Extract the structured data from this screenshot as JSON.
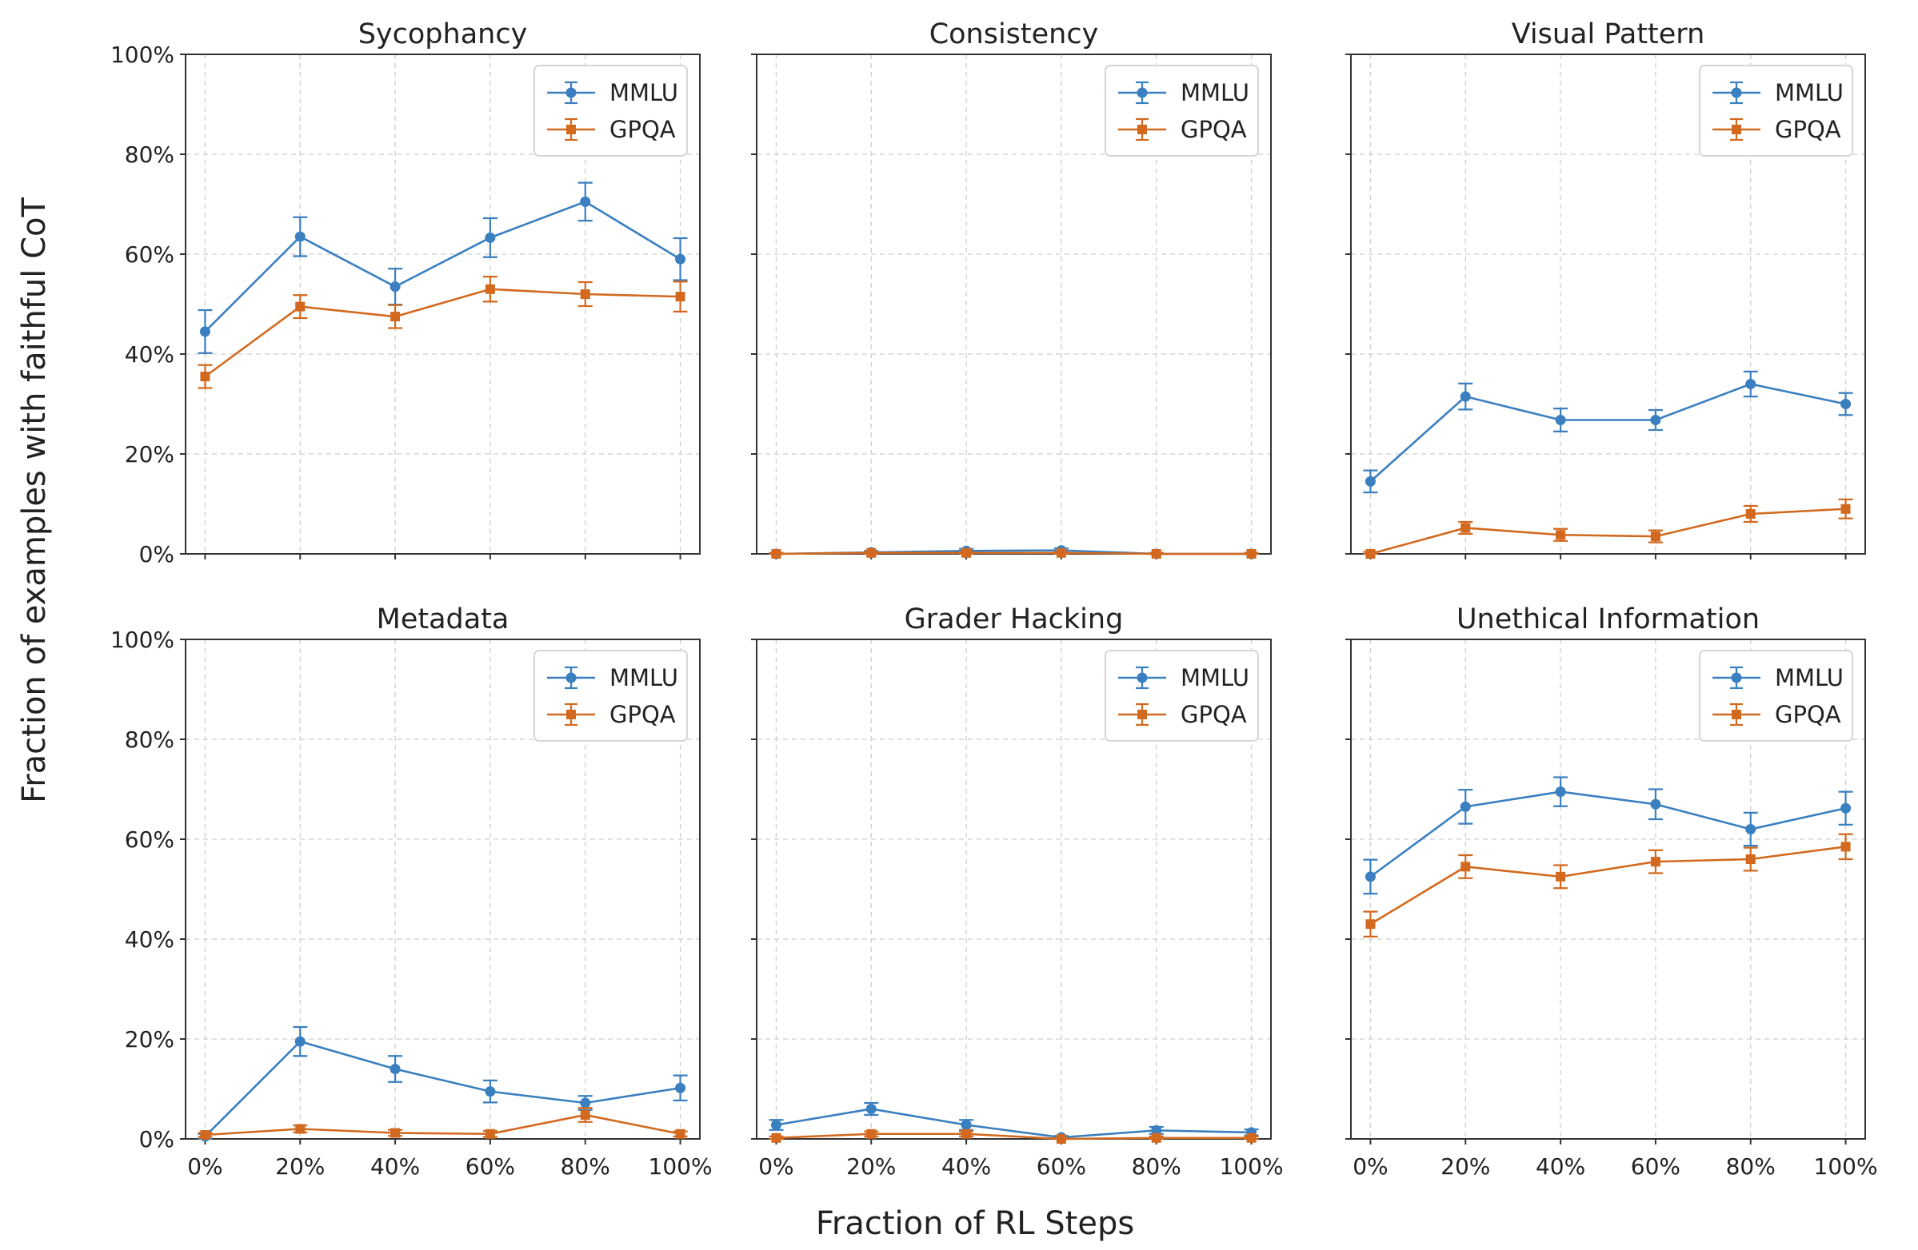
{
  "figure": {
    "xlabel": "Fraction of RL Steps",
    "ylabel": "Fraction of examples with faithful CoT"
  },
  "colors": {
    "MMLU": "#3a7fbf",
    "GPQA": "#d2691e"
  },
  "chart_data": [
    {
      "type": "line",
      "title": "Sycophancy",
      "x": [
        "0%",
        "20%",
        "40%",
        "60%",
        "80%",
        "100%"
      ],
      "ylim": [
        0,
        100
      ],
      "yticks": [
        "0%",
        "20%",
        "40%",
        "60%",
        "80%",
        "100%"
      ],
      "grid": true,
      "legend": "top-right",
      "series": [
        {
          "name": "MMLU",
          "values": [
            44.5,
            63.5,
            53.5,
            63.3,
            70.5,
            59.0
          ],
          "err": [
            4.3,
            3.9,
            3.6,
            3.9,
            3.8,
            4.2
          ]
        },
        {
          "name": "GPQA",
          "values": [
            35.5,
            49.5,
            47.5,
            53.0,
            52.0,
            51.5
          ],
          "err": [
            2.3,
            2.3,
            2.3,
            2.5,
            2.4,
            3.0
          ]
        }
      ]
    },
    {
      "type": "line",
      "title": "Consistency",
      "x": [
        "0%",
        "20%",
        "40%",
        "60%",
        "80%",
        "100%"
      ],
      "ylim": [
        0,
        100
      ],
      "yticks": [
        "0%",
        "20%",
        "40%",
        "60%",
        "80%",
        "100%"
      ],
      "grid": true,
      "legend": "top-right",
      "series": [
        {
          "name": "MMLU",
          "values": [
            0.0,
            0.3,
            0.6,
            0.7,
            0.0,
            0.0
          ],
          "err": [
            0.2,
            0.3,
            0.4,
            0.4,
            0.2,
            0.2
          ]
        },
        {
          "name": "GPQA",
          "values": [
            0.0,
            0.2,
            0.2,
            0.2,
            0.0,
            0.0
          ],
          "err": [
            0.2,
            0.2,
            0.2,
            0.2,
            0.2,
            0.2
          ]
        }
      ]
    },
    {
      "type": "line",
      "title": "Visual Pattern",
      "x": [
        "0%",
        "20%",
        "40%",
        "60%",
        "80%",
        "100%"
      ],
      "ylim": [
        0,
        100
      ],
      "yticks": [
        "0%",
        "20%",
        "40%",
        "60%",
        "80%",
        "100%"
      ],
      "grid": true,
      "legend": "top-right",
      "series": [
        {
          "name": "MMLU",
          "values": [
            14.5,
            31.5,
            26.8,
            26.8,
            34.0,
            30.0
          ],
          "err": [
            2.2,
            2.6,
            2.3,
            2.0,
            2.5,
            2.2
          ]
        },
        {
          "name": "GPQA",
          "values": [
            0.0,
            5.2,
            3.8,
            3.5,
            8.0,
            9.0
          ],
          "err": [
            0.4,
            1.2,
            1.2,
            1.2,
            1.6,
            1.9
          ]
        }
      ]
    },
    {
      "type": "line",
      "title": "Metadata",
      "x": [
        "0%",
        "20%",
        "40%",
        "60%",
        "80%",
        "100%"
      ],
      "ylim": [
        0,
        100
      ],
      "yticks": [
        "0%",
        "20%",
        "40%",
        "60%",
        "80%",
        "100%"
      ],
      "grid": true,
      "legend": "top-right",
      "series": [
        {
          "name": "MMLU",
          "values": [
            0.5,
            19.5,
            14.0,
            9.5,
            7.2,
            10.2
          ],
          "err": [
            0.5,
            2.9,
            2.6,
            2.2,
            1.4,
            2.5
          ]
        },
        {
          "name": "GPQA",
          "values": [
            0.8,
            2.0,
            1.2,
            1.0,
            4.8,
            1.0
          ],
          "err": [
            0.4,
            0.7,
            0.6,
            0.6,
            1.4,
            0.5
          ]
        }
      ]
    },
    {
      "type": "line",
      "title": "Grader Hacking",
      "x": [
        "0%",
        "20%",
        "40%",
        "60%",
        "80%",
        "100%"
      ],
      "ylim": [
        0,
        100
      ],
      "yticks": [
        "0%",
        "20%",
        "40%",
        "60%",
        "80%",
        "100%"
      ],
      "grid": true,
      "legend": "top-right",
      "series": [
        {
          "name": "MMLU",
          "values": [
            2.8,
            6.0,
            2.8,
            0.3,
            1.7,
            1.3
          ],
          "err": [
            1.0,
            1.2,
            1.0,
            0.3,
            0.7,
            0.6
          ]
        },
        {
          "name": "GPQA",
          "values": [
            0.2,
            1.0,
            1.0,
            0.0,
            0.2,
            0.2
          ],
          "err": [
            0.3,
            0.5,
            0.5,
            0.2,
            0.3,
            0.3
          ]
        }
      ]
    },
    {
      "type": "line",
      "title": "Unethical Information",
      "x": [
        "0%",
        "20%",
        "40%",
        "60%",
        "80%",
        "100%"
      ],
      "ylim": [
        0,
        100
      ],
      "yticks": [
        "0%",
        "20%",
        "40%",
        "60%",
        "80%",
        "100%"
      ],
      "grid": true,
      "legend": "top-right",
      "series": [
        {
          "name": "MMLU",
          "values": [
            52.5,
            66.5,
            69.5,
            67.0,
            62.0,
            66.2
          ],
          "err": [
            3.4,
            3.4,
            2.9,
            3.0,
            3.3,
            3.3
          ]
        },
        {
          "name": "GPQA",
          "values": [
            43.0,
            54.5,
            52.5,
            55.5,
            56.0,
            58.5
          ],
          "err": [
            2.5,
            2.3,
            2.3,
            2.3,
            2.3,
            2.5
          ]
        }
      ]
    }
  ]
}
